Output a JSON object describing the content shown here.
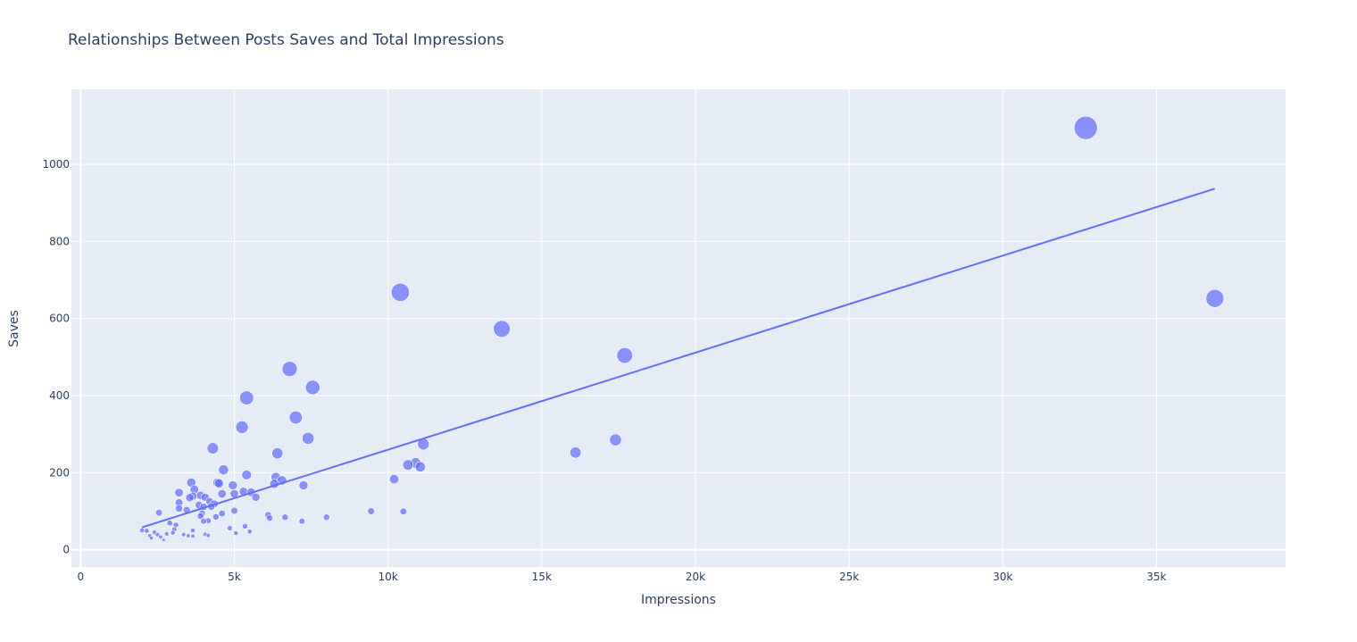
{
  "chart_data": {
    "type": "scatter",
    "title": "Relationships Between Posts Saves and Total Impressions",
    "xlabel": "Impressions",
    "ylabel": "Saves",
    "xlim": [
      -300,
      39200
    ],
    "ylim": [
      -45,
      1195
    ],
    "x_ticks": [
      0,
      5000,
      10000,
      15000,
      20000,
      25000,
      30000,
      35000
    ],
    "x_tick_labels": [
      "0",
      "5k",
      "10k",
      "15k",
      "20k",
      "25k",
      "30k",
      "35k"
    ],
    "y_ticks": [
      0,
      200,
      400,
      600,
      800,
      1000
    ],
    "y_tick_labels": [
      "0",
      "200",
      "400",
      "600",
      "800",
      "1000"
    ],
    "grid": true,
    "colors": {
      "marker": "#636efa",
      "background": "#e5ecf6",
      "grid": "#ffffff",
      "text": "#2a3f5f"
    },
    "trendline": {
      "x": [
        2000,
        36900
      ],
      "y": [
        58,
        937
      ]
    },
    "points": [
      {
        "x": 32700,
        "y": 1095
      },
      {
        "x": 36900,
        "y": 652
      },
      {
        "x": 10400,
        "y": 668
      },
      {
        "x": 13700,
        "y": 573
      },
      {
        "x": 17700,
        "y": 504
      },
      {
        "x": 6800,
        "y": 469
      },
      {
        "x": 7550,
        "y": 421
      },
      {
        "x": 5400,
        "y": 394
      },
      {
        "x": 7000,
        "y": 343
      },
      {
        "x": 5250,
        "y": 318
      },
      {
        "x": 7400,
        "y": 289
      },
      {
        "x": 17400,
        "y": 285
      },
      {
        "x": 11150,
        "y": 274
      },
      {
        "x": 4300,
        "y": 263
      },
      {
        "x": 16100,
        "y": 252
      },
      {
        "x": 6400,
        "y": 250
      },
      {
        "x": 10900,
        "y": 225
      },
      {
        "x": 10650,
        "y": 220
      },
      {
        "x": 11050,
        "y": 215
      },
      {
        "x": 4650,
        "y": 207
      },
      {
        "x": 5400,
        "y": 194
      },
      {
        "x": 6350,
        "y": 188
      },
      {
        "x": 10200,
        "y": 183
      },
      {
        "x": 6550,
        "y": 180
      },
      {
        "x": 3600,
        "y": 174
      },
      {
        "x": 4450,
        "y": 174
      },
      {
        "x": 4500,
        "y": 172
      },
      {
        "x": 6300,
        "y": 171
      },
      {
        "x": 7250,
        "y": 167
      },
      {
        "x": 4950,
        "y": 167
      },
      {
        "x": 3700,
        "y": 156
      },
      {
        "x": 5300,
        "y": 151
      },
      {
        "x": 5550,
        "y": 149
      },
      {
        "x": 3200,
        "y": 148
      },
      {
        "x": 4600,
        "y": 145
      },
      {
        "x": 5000,
        "y": 145
      },
      {
        "x": 3900,
        "y": 141
      },
      {
        "x": 3650,
        "y": 139
      },
      {
        "x": 4050,
        "y": 136
      },
      {
        "x": 5700,
        "y": 136
      },
      {
        "x": 3550,
        "y": 135
      },
      {
        "x": 4200,
        "y": 125
      },
      {
        "x": 3200,
        "y": 122
      },
      {
        "x": 4350,
        "y": 119
      },
      {
        "x": 3850,
        "y": 116
      },
      {
        "x": 4250,
        "y": 112
      },
      {
        "x": 4000,
        "y": 111
      },
      {
        "x": 3200,
        "y": 107
      },
      {
        "x": 3450,
        "y": 103
      },
      {
        "x": 5000,
        "y": 101
      },
      {
        "x": 9450,
        "y": 100
      },
      {
        "x": 10500,
        "y": 99
      },
      {
        "x": 2550,
        "y": 96
      },
      {
        "x": 4600,
        "y": 94
      },
      {
        "x": 3950,
        "y": 94
      },
      {
        "x": 6100,
        "y": 90
      },
      {
        "x": 3900,
        "y": 87
      },
      {
        "x": 4400,
        "y": 85
      },
      {
        "x": 6650,
        "y": 84
      },
      {
        "x": 8000,
        "y": 84
      },
      {
        "x": 6150,
        "y": 82
      },
      {
        "x": 4150,
        "y": 75
      },
      {
        "x": 4000,
        "y": 74
      },
      {
        "x": 7200,
        "y": 74
      },
      {
        "x": 2900,
        "y": 69
      },
      {
        "x": 3100,
        "y": 64
      },
      {
        "x": 5350,
        "y": 61
      },
      {
        "x": 4850,
        "y": 56
      },
      {
        "x": 3050,
        "y": 53
      },
      {
        "x": 2000,
        "y": 50
      },
      {
        "x": 3650,
        "y": 50
      },
      {
        "x": 2150,
        "y": 49
      },
      {
        "x": 5500,
        "y": 47
      },
      {
        "x": 2400,
        "y": 45
      },
      {
        "x": 3000,
        "y": 44
      },
      {
        "x": 5050,
        "y": 43
      },
      {
        "x": 2800,
        "y": 41
      },
      {
        "x": 4050,
        "y": 40
      },
      {
        "x": 2500,
        "y": 39
      },
      {
        "x": 3350,
        "y": 39
      },
      {
        "x": 4150,
        "y": 37
      },
      {
        "x": 2250,
        "y": 36
      },
      {
        "x": 3500,
        "y": 36
      },
      {
        "x": 3650,
        "y": 35
      },
      {
        "x": 2600,
        "y": 33
      },
      {
        "x": 2300,
        "y": 30
      },
      {
        "x": 2700,
        "y": 25
      }
    ]
  }
}
